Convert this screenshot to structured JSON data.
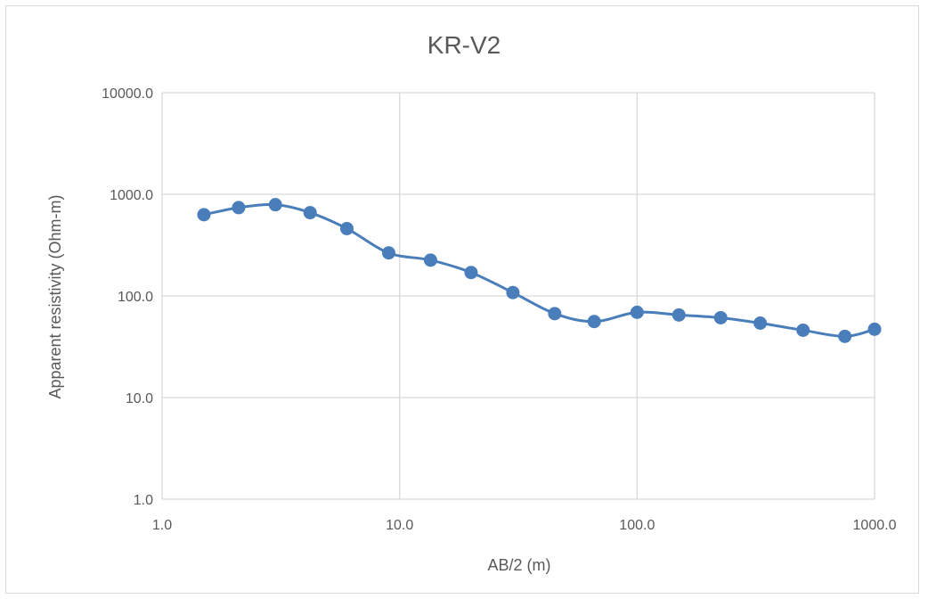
{
  "chart_data": {
    "type": "line",
    "title": "KR-V2",
    "xlabel": "AB/2 (m)",
    "ylabel": "Apparent resistivity (Ohm-m)",
    "x_scale": "log",
    "y_scale": "log",
    "xlim": [
      1,
      1000
    ],
    "ylim": [
      1,
      10000
    ],
    "x_ticks": [
      1,
      10,
      100,
      1000
    ],
    "x_tick_labels": [
      "1.0",
      "10.0",
      "100.0",
      "1000.0"
    ],
    "y_ticks": [
      1,
      10,
      100,
      1000,
      10000
    ],
    "y_tick_labels": [
      "1.0",
      "10.0",
      "100.0",
      "1000.0",
      "10000.0"
    ],
    "grid": true,
    "legend": "none",
    "smoothed": true,
    "series": [
      {
        "color": "#4a7ebb",
        "marker": "circle",
        "points": [
          {
            "x": 1.5,
            "y": 630
          },
          {
            "x": 2.1,
            "y": 740
          },
          {
            "x": 3,
            "y": 790
          },
          {
            "x": 4.2,
            "y": 660
          },
          {
            "x": 6,
            "y": 460
          },
          {
            "x": 9,
            "y": 265
          },
          {
            "x": 13.5,
            "y": 225
          },
          {
            "x": 20,
            "y": 170
          },
          {
            "x": 30,
            "y": 108
          },
          {
            "x": 45,
            "y": 67
          },
          {
            "x": 66,
            "y": 56
          },
          {
            "x": 100,
            "y": 69
          },
          {
            "x": 150,
            "y": 65
          },
          {
            "x": 225,
            "y": 61
          },
          {
            "x": 330,
            "y": 54
          },
          {
            "x": 500,
            "y": 46
          },
          {
            "x": 750,
            "y": 40
          },
          {
            "x": 1000,
            "y": 47
          }
        ]
      }
    ]
  }
}
